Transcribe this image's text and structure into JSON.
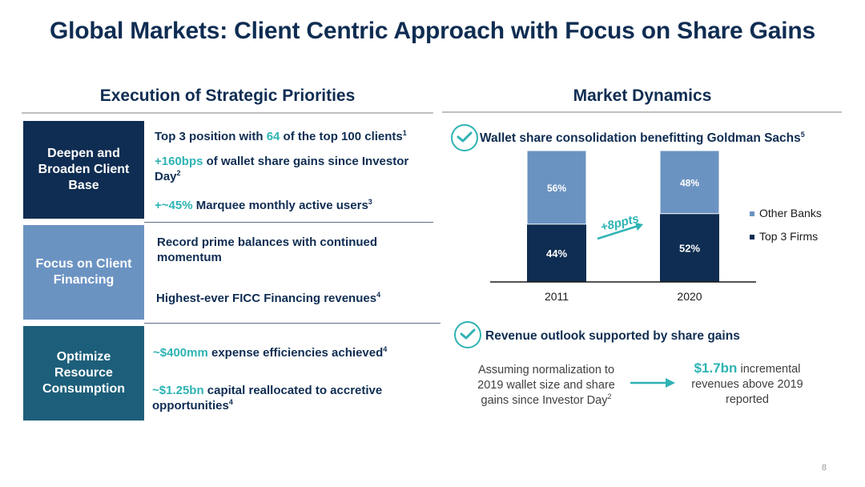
{
  "title": "Global Markets: Client Centric Approach with Focus on Share Gains",
  "left": {
    "heading": "Execution of Strategic Priorities",
    "priorities": [
      {
        "label": "Deepen and Broaden Client Base",
        "color": "#0f2d52",
        "points": [
          {
            "pre": "Top 3 position with ",
            "hl": "64",
            "post": " of the top 100 clients",
            "sup": "1"
          },
          {
            "pre": "",
            "hl": "+160bps",
            "post": " of wallet share gains since Investor Day",
            "sup": "2"
          },
          {
            "pre": "",
            "hl": "+~45%",
            "post": " Marquee monthly active users",
            "sup": "3"
          }
        ]
      },
      {
        "label": "Focus on Client Financing",
        "color": "#6b93c2",
        "points": [
          {
            "pre": "Record prime balances with continued momentum",
            "hl": "",
            "post": "",
            "sup": ""
          },
          {
            "pre": "Highest-ever FICC Financing revenues",
            "hl": "",
            "post": "",
            "sup": "4"
          }
        ]
      },
      {
        "label": "Optimize Resource Consumption",
        "color": "#1d5f7a",
        "points": [
          {
            "pre": "",
            "hl": "~$400mm",
            "post": " expense efficiencies achieved",
            "sup": "4"
          },
          {
            "pre": "",
            "hl": "~$1.25bn",
            "post": " capital reallocated to accretive opportunities",
            "sup": "4"
          }
        ]
      }
    ]
  },
  "right": {
    "heading": "Market Dynamics",
    "wallet_heading": "Wallet share consolidation benefitting Goldman Sachs",
    "wallet_sup": "5",
    "arrow_label": "+8ppts",
    "outlook_heading": "Revenue outlook supported by share gains",
    "outlook_left": "Assuming normalization to 2019 wallet size and share gains since Investor Day",
    "outlook_left_sup": "2",
    "outlook_value": "$1.7bn",
    "outlook_right": " incremental revenues above 2019 reported"
  },
  "chart_data": {
    "type": "bar",
    "stacked": true,
    "categories": [
      "2011",
      "2020"
    ],
    "series": [
      {
        "name": "Top 3 Firms",
        "values": [
          44,
          52
        ],
        "labels": [
          "44%",
          "52%"
        ],
        "color": "#0f2d52"
      },
      {
        "name": "Other Banks",
        "values": [
          56,
          48
        ],
        "labels": [
          "56%",
          "48%"
        ],
        "color": "#6b93c2"
      }
    ],
    "ylim": [
      0,
      100
    ],
    "legend": "right"
  },
  "page_number": "8"
}
